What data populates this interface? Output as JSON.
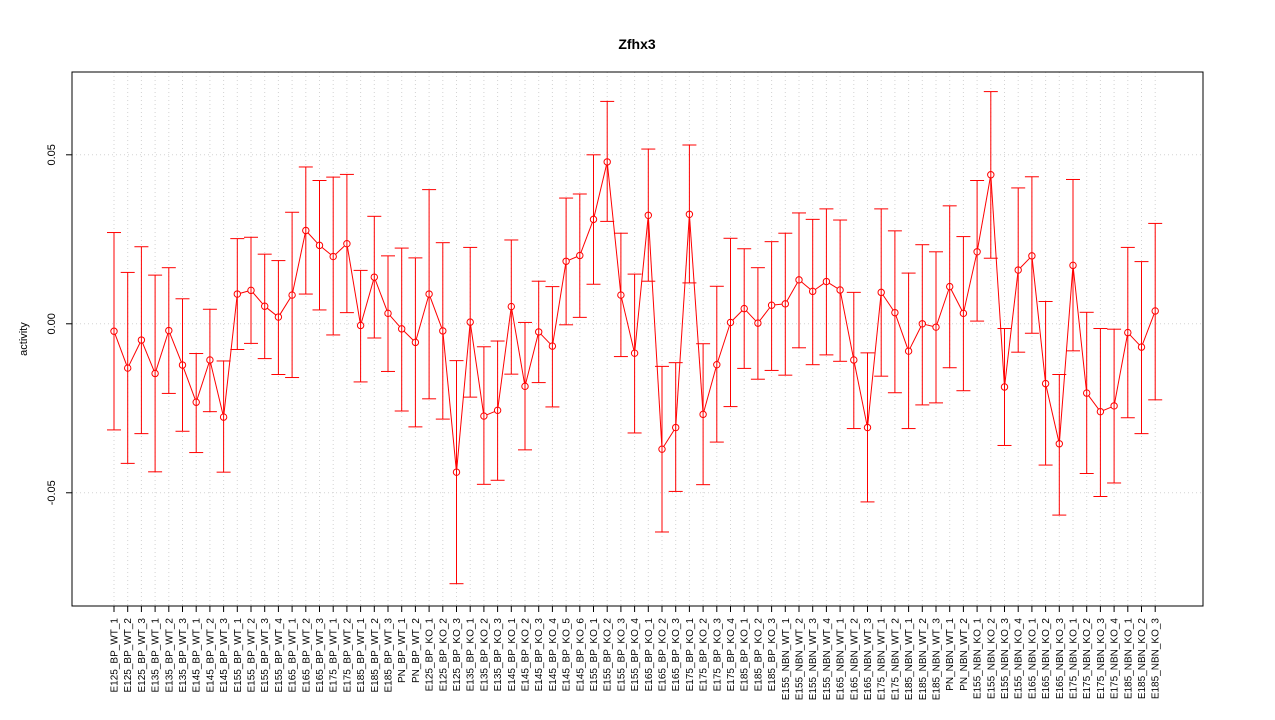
{
  "chart_data": {
    "type": "line",
    "title": "Zfhx3",
    "xlabel": "",
    "ylabel": "activity",
    "ylim": [
      -0.0835,
      0.0745
    ],
    "yticks": [
      -0.05,
      0.0,
      0.05
    ],
    "ytick_labels": [
      "-0.05",
      "0.00",
      "0.05"
    ],
    "grid": true,
    "zero_line": true,
    "series_color": "#ff0000",
    "grid_color": "#d3d3d3",
    "categories": [
      "E125_BP_WT_1",
      "E125_BP_WT_2",
      "E125_BP_WT_3",
      "E135_BP_WT_1",
      "E135_BP_WT_2",
      "E135_BP_WT_3",
      "E145_BP_WT_1",
      "E145_BP_WT_2",
      "E145_BP_WT_3",
      "E155_BP_WT_1",
      "E155_BP_WT_2",
      "E155_BP_WT_3",
      "E155_BP_WT_4",
      "E165_BP_WT_1",
      "E165_BP_WT_2",
      "E165_BP_WT_3",
      "E175_BP_WT_1",
      "E175_BP_WT_2",
      "E185_BP_WT_1",
      "E185_BP_WT_2",
      "E185_BP_WT_3",
      "PN_BP_WT_1",
      "PN_BP_WT_2",
      "E125_BP_KO_1",
      "E125_BP_KO_2",
      "E125_BP_KO_3",
      "E135_BP_KO_1",
      "E135_BP_KO_2",
      "E135_BP_KO_3",
      "E145_BP_KO_1",
      "E145_BP_KO_2",
      "E145_BP_KO_3",
      "E145_BP_KO_4",
      "E145_BP_KO_5",
      "E145_BP_KO_6",
      "E155_BP_KO_1",
      "E155_BP_KO_2",
      "E155_BP_KO_3",
      "E155_BP_KO_4",
      "E165_BP_KO_1",
      "E165_BP_KO_2",
      "E165_BP_KO_3",
      "E175_BP_KO_1",
      "E175_BP_KO_2",
      "E175_BP_KO_3",
      "E175_BP_KO_4",
      "E185_BP_KO_1",
      "E185_BP_KO_2",
      "E185_BP_KO_3",
      "E155_NBN_WT_1",
      "E155_NBN_WT_2",
      "E155_NBN_WT_3",
      "E155_NBN_WT_4",
      "E165_NBN_WT_1",
      "E165_NBN_WT_2",
      "E165_NBN_WT_3",
      "E175_NBN_WT_1",
      "E175_NBN_WT_2",
      "E185_NBN_WT_1",
      "E185_NBN_WT_2",
      "E185_NBN_WT_3",
      "PN_NBN_WT_1",
      "PN_NBN_WT_2",
      "E155_NBN_KO_1",
      "E155_NBN_KO_2",
      "E155_NBN_KO_3",
      "E155_NBN_KO_4",
      "E165_NBN_KO_1",
      "E165_NBN_KO_2",
      "E165_NBN_KO_3",
      "E175_NBN_KO_1",
      "E175_NBN_KO_2",
      "E175_NBN_KO_3",
      "E175_NBN_KO_4",
      "E185_NBN_KO_1",
      "E185_NBN_KO_2",
      "E185_NBN_KO_3"
    ],
    "values": [
      -0.0022,
      -0.0131,
      -0.0048,
      -0.0147,
      -0.002,
      -0.0122,
      -0.0232,
      -0.0107,
      -0.0276,
      0.0088,
      0.0099,
      0.0052,
      0.002,
      0.0085,
      0.0276,
      0.0232,
      0.0199,
      0.0237,
      -0.0005,
      0.0138,
      0.0031,
      -0.0015,
      -0.0055,
      0.0088,
      -0.0021,
      -0.0439,
      0.0005,
      -0.0273,
      -0.0256,
      0.0051,
      -0.0185,
      -0.0024,
      -0.0066,
      0.0185,
      0.0202,
      0.0309,
      0.0479,
      0.0085,
      -0.0087,
      0.0321,
      -0.0371,
      -0.0307,
      0.0324,
      -0.0268,
      -0.0121,
      0.0004,
      0.0045,
      0.0002,
      0.0055,
      0.0059,
      0.013,
      0.0096,
      0.0125,
      0.01,
      -0.0107,
      -0.0307,
      0.0093,
      0.0033,
      -0.0081,
      0.0,
      -0.001,
      0.011,
      0.0031,
      0.0213,
      0.0441,
      -0.0187,
      0.0159,
      0.0201,
      -0.0177,
      -0.0355,
      0.0173,
      -0.0205,
      -0.026,
      -0.0243,
      -0.0026,
      -0.0069,
      0.0038
    ],
    "err_upper": [
      0.027,
      0.0152,
      0.0228,
      0.0144,
      0.0166,
      0.0074,
      -0.0088,
      0.0043,
      -0.011,
      0.0252,
      0.0256,
      0.0206,
      0.0187,
      0.033,
      0.0464,
      0.0424,
      0.0434,
      0.0442,
      0.0158,
      0.0318,
      0.0201,
      0.0224,
      0.0195,
      0.0397,
      0.024,
      -0.0109,
      0.0226,
      -0.0068,
      -0.0051,
      0.0248,
      0.0004,
      0.0126,
      0.011,
      0.0372,
      0.0384,
      0.05,
      0.0658,
      0.0268,
      0.0147,
      0.0517,
      -0.0126,
      -0.0115,
      0.0529,
      -0.0059,
      0.0111,
      0.0253,
      0.0222,
      0.0166,
      0.0243,
      0.0268,
      0.0328,
      0.0309,
      0.034,
      0.0307,
      0.0093,
      -0.0086,
      0.034,
      0.0275,
      0.015,
      0.0234,
      0.0213,
      0.0349,
      0.0258,
      0.0424,
      0.0687,
      -0.0014,
      0.0402,
      0.0435,
      0.0066,
      -0.015,
      0.0427,
      0.0034,
      -0.0014,
      -0.0016,
      0.0226,
      0.0184,
      0.0297
    ],
    "err_lower": [
      -0.0314,
      -0.0413,
      -0.0325,
      -0.0438,
      -0.0206,
      -0.0318,
      -0.0381,
      -0.026,
      -0.0439,
      -0.0076,
      -0.0058,
      -0.0103,
      -0.015,
      -0.0159,
      0.0088,
      0.0041,
      -0.0033,
      0.0033,
      -0.0172,
      -0.0042,
      -0.0141,
      -0.0258,
      -0.0305,
      -0.0222,
      -0.0282,
      -0.0769,
      -0.0217,
      -0.0475,
      -0.0463,
      -0.0149,
      -0.0373,
      -0.0174,
      -0.0246,
      -0.0003,
      0.0019,
      0.0117,
      0.0303,
      -0.0097,
      -0.0323,
      0.0126,
      -0.0616,
      -0.0496,
      0.0121,
      -0.0476,
      -0.035,
      -0.0245,
      -0.0132,
      -0.0164,
      -0.0138,
      -0.0152,
      -0.0071,
      -0.0121,
      -0.0092,
      -0.0111,
      -0.031,
      -0.0527,
      -0.0155,
      -0.0204,
      -0.031,
      -0.024,
      -0.0234,
      -0.013,
      -0.0198,
      0.0008,
      0.0194,
      -0.036,
      -0.0084,
      -0.0028,
      -0.0418,
      -0.0566,
      -0.008,
      -0.0443,
      -0.0511,
      -0.0471,
      -0.0278,
      -0.0325,
      -0.0225
    ]
  }
}
